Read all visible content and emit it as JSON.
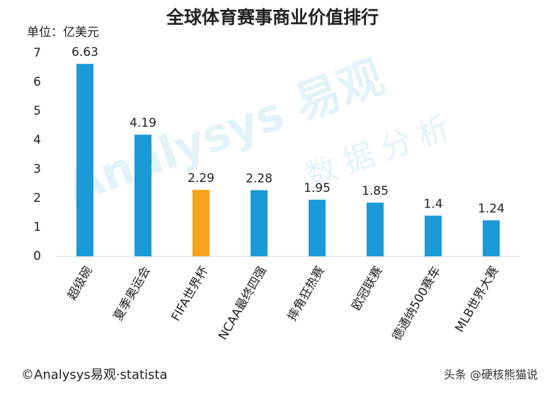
{
  "chart_data": {
    "type": "bar",
    "title": "全球体育赛事商业价值排行",
    "y_unit_label": "单位：亿美元",
    "categories": [
      "超级碗",
      "夏季奥运会",
      "FIFA世界杯",
      "NCAA最终四强",
      "摔角狂热赛",
      "欧冠联赛",
      "德通纳500赛车",
      "MLB世界大赛"
    ],
    "values": [
      6.63,
      4.19,
      2.29,
      2.28,
      1.95,
      1.85,
      1.4,
      1.24
    ],
    "colors": [
      "#1a9ad6",
      "#1a9ad6",
      "#f7a21b",
      "#1a9ad6",
      "#1a9ad6",
      "#1a9ad6",
      "#1a9ad6",
      "#1a9ad6"
    ],
    "ylim": [
      0,
      7
    ],
    "yticks": [
      0,
      1,
      2,
      3,
      4,
      5,
      6,
      7
    ],
    "grid": false,
    "watermark": [
      "Analysys 易观",
      "数据分析"
    ],
    "source": "©Analysys易观·statista",
    "credit": "头条 @硬核熊猫说"
  }
}
